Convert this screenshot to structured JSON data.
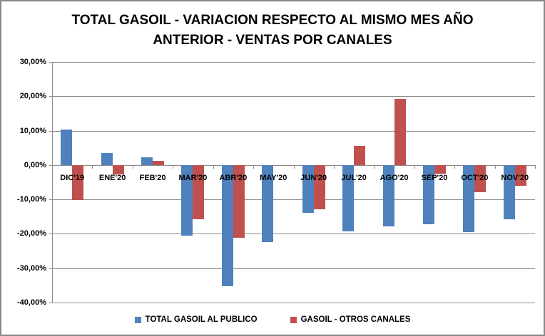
{
  "chart_data": {
    "type": "bar",
    "title": "TOTAL GASOIL - VARIACION RESPECTO AL MISMO MES AÑO ANTERIOR - VENTAS POR CANALES",
    "title_lines": [
      "TOTAL GASOIL - VARIACION RESPECTO AL MISMO MES AÑO",
      "ANTERIOR - VENTAS POR CANALES"
    ],
    "categories": [
      "DIC'19",
      "ENE'20",
      "FEB'20",
      "MAR'20",
      "ABR'20",
      "MAY'20",
      "JUN'20",
      "JUL'20",
      "AGO'20",
      "SEP'20",
      "OCT'20",
      "NOV'20"
    ],
    "series": [
      {
        "name": "TOTAL GASOIL AL PUBLICO",
        "color": "#4F81BD",
        "values": [
          10.3,
          3.5,
          2.3,
          -20.5,
          -35.2,
          -22.3,
          -14.0,
          -19.2,
          -17.9,
          -17.2,
          -19.4,
          -15.7
        ]
      },
      {
        "name": "GASOIL - OTROS CANALES",
        "color": "#C0504D",
        "values": [
          -10.2,
          -2.7,
          1.3,
          -15.8,
          -21.1,
          0,
          -12.9,
          5.5,
          19.3,
          -2.5,
          -7.8,
          -6.1
        ]
      }
    ],
    "ylim": [
      -40,
      30
    ],
    "ytick_step": 10,
    "ytick_labels": [
      "30,00%",
      "20,00%",
      "10,00%",
      "0,00%",
      "-10,00%",
      "-20,00%",
      "-30,00%",
      "-40,00%"
    ],
    "grid": true,
    "legend_position": "bottom",
    "colors": {
      "axis": "#8C8C8C",
      "text": "#000000",
      "background": "#FFFFFF",
      "border": "#888888"
    }
  }
}
